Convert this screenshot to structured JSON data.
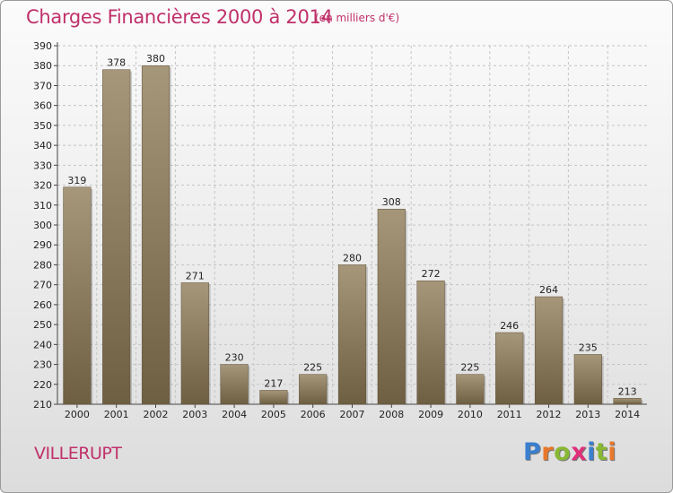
{
  "page": {
    "title": "Charges Financières 2000 à 2014",
    "subtitle": "(en milliers d'€)",
    "town": "VILLERUPT",
    "logo": {
      "letters": [
        {
          "char": "P",
          "color": "#3a7fd0"
        },
        {
          "char": "r",
          "color": "#e8782a"
        },
        {
          "char": "o",
          "color": "#88b834"
        },
        {
          "char": "x",
          "color": "#e0307a"
        },
        {
          "char": "i",
          "color": "#3a7fd0"
        },
        {
          "char": "t",
          "color": "#88b834"
        },
        {
          "char": "i",
          "color": "#e8782a"
        }
      ]
    }
  },
  "chart_data": {
    "type": "bar",
    "title": "Charges Financières 2000 à 2014",
    "subtitle": "(en milliers d'€)",
    "categories": [
      "2000",
      "2001",
      "2002",
      "2003",
      "2004",
      "2005",
      "2006",
      "2007",
      "2008",
      "2009",
      "2010",
      "2011",
      "2012",
      "2013",
      "2014"
    ],
    "values": [
      319,
      378,
      380,
      271,
      230,
      217,
      225,
      280,
      308,
      272,
      225,
      246,
      264,
      235,
      213
    ],
    "ylim": [
      210,
      390
    ],
    "yticks": [
      210,
      220,
      230,
      240,
      250,
      260,
      270,
      280,
      290,
      300,
      310,
      320,
      330,
      340,
      350,
      360,
      370,
      380,
      390
    ],
    "grid": true,
    "bar_color": "#8a7a5e",
    "xlabel": "",
    "ylabel": ""
  }
}
